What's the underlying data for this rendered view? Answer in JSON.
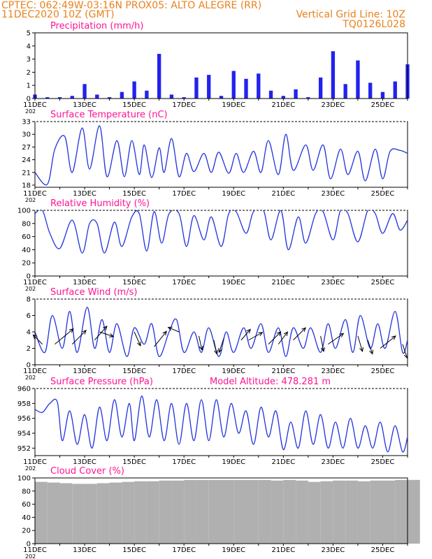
{
  "header": {
    "line1_left": "CPTEC:   062:49W-03:16N   PROX05: ALTO ALEGRE (RR)",
    "line2_left": "11DEC2020 10Z (GMT)",
    "line2_right": "Vertical Grid Line: 10Z",
    "line3_right": "TQ0126L028"
  },
  "x_axis": {
    "labels": [
      "11DEC",
      "13DEC",
      "15DEC",
      "17DEC",
      "19DEC",
      "21DEC",
      "23DEC",
      "25DEC"
    ],
    "year_prefix": "202"
  },
  "colors": {
    "line": "#2233dd",
    "bar": "#2222ee",
    "title": "#ff1493",
    "header": "#e8821e",
    "cloud": "#b0b0b0",
    "arrow": "#000000"
  },
  "chart_data": [
    {
      "type": "bar",
      "title": "Precipitation (mm/h)",
      "ylim": [
        0,
        5
      ],
      "yticks": [
        "0",
        "1",
        "2",
        "3",
        "4",
        "5"
      ],
      "x_days": [
        0,
        0.5,
        1,
        1.5,
        2,
        2.5,
        3,
        3.5,
        4,
        4.5,
        5,
        5.5,
        6,
        6.5,
        7,
        7.5,
        8,
        8.5,
        9,
        9.5,
        10,
        10.5,
        11,
        11.5,
        12,
        12.5,
        13,
        13.5,
        14,
        14.5,
        15
      ],
      "values": [
        0.3,
        0.1,
        0.1,
        0.2,
        1.1,
        0.3,
        0.1,
        0.5,
        1.3,
        0.6,
        3.4,
        0.3,
        0.1,
        1.6,
        1.8,
        0.2,
        2.1,
        1.5,
        1.9,
        0.6,
        0.2,
        0.7,
        0.1,
        1.6,
        3.6,
        1.1,
        2.9,
        1.2,
        0.5,
        1.3,
        2.6
      ]
    },
    {
      "type": "line",
      "title": "Surface Temperature (nC)",
      "ylim": [
        17.5,
        33
      ],
      "yticks": [
        "18",
        "21",
        "24",
        "27",
        "30",
        "33"
      ],
      "x_days": [
        0,
        0.5,
        0.8,
        1.2,
        1.5,
        1.9,
        2.2,
        2.6,
        2.9,
        3.3,
        3.6,
        3.9,
        4.2,
        4.4,
        4.7,
        5.0,
        5.2,
        5.5,
        5.8,
        6.1,
        6.4,
        6.8,
        7.1,
        7.4,
        7.8,
        8.1,
        8.4,
        8.8,
        9.1,
        9.4,
        9.8,
        10.1,
        10.4,
        10.9,
        11.2,
        11.6,
        11.9,
        12.3,
        12.6,
        13.0,
        13.3,
        13.7,
        14.0,
        14.3,
        14.7,
        15.0
      ],
      "values": [
        21,
        18.2,
        26.5,
        29.5,
        21.0,
        31.5,
        21.8,
        32.0,
        20.0,
        28.5,
        20.0,
        28.5,
        20.5,
        27.5,
        19.8,
        26.8,
        21.0,
        29.0,
        20.0,
        25.5,
        21.2,
        25.5,
        21.0,
        25.8,
        20.8,
        25.5,
        21.0,
        26.0,
        21.0,
        28.5,
        20.5,
        30.0,
        21.5,
        27.5,
        21.5,
        27.5,
        19.5,
        26.5,
        20.5,
        26.0,
        19.0,
        26.5,
        19.5,
        26.0,
        26.2,
        25.5
      ]
    },
    {
      "type": "line",
      "title": "Relative Humidity (%)",
      "ylim": [
        0,
        100
      ],
      "yticks": [
        "0",
        "20",
        "40",
        "60",
        "80",
        "100"
      ],
      "x_days": [
        0,
        0.3,
        0.6,
        1.0,
        1.5,
        1.9,
        2.2,
        2.5,
        2.8,
        3.2,
        3.5,
        3.9,
        4.2,
        4.5,
        4.8,
        5.1,
        5.4,
        5.8,
        6.1,
        6.4,
        6.8,
        7.1,
        7.5,
        7.8,
        8.1,
        8.5,
        8.8,
        9.2,
        9.5,
        9.9,
        10.2,
        10.6,
        10.9,
        11.3,
        11.6,
        12.0,
        12.3,
        12.6,
        13.0,
        13.4,
        13.7,
        14.0,
        14.4,
        14.7,
        15.0
      ],
      "values": [
        95,
        100,
        65,
        42,
        85,
        35,
        80,
        80,
        35,
        82,
        45,
        90,
        95,
        38,
        98,
        50,
        95,
        95,
        45,
        92,
        55,
        90,
        45,
        95,
        98,
        65,
        98,
        100,
        55,
        100,
        40,
        90,
        50,
        95,
        98,
        55,
        100,
        95,
        52,
        100,
        95,
        65,
        95,
        70,
        85
      ]
    },
    {
      "type": "line",
      "title": "Surface Wind (m/s)",
      "ylim": [
        0,
        8
      ],
      "yticks": [
        "0",
        "2",
        "4",
        "6",
        "8"
      ],
      "x_days": [
        0,
        0.4,
        0.7,
        1.1,
        1.4,
        1.7,
        2.1,
        2.4,
        2.7,
        3.0,
        3.3,
        3.7,
        4.0,
        4.4,
        4.7,
        5.0,
        5.4,
        5.7,
        6.0,
        6.4,
        6.7,
        7.0,
        7.4,
        7.7,
        8.0,
        8.4,
        8.7,
        9.1,
        9.4,
        9.8,
        10.1,
        10.4,
        10.8,
        11.1,
        11.5,
        11.8,
        12.1,
        12.5,
        12.8,
        13.1,
        13.5,
        13.8,
        14.1,
        14.5,
        14.8,
        15.0
      ],
      "values": [
        4.0,
        1.5,
        6.0,
        2.0,
        6.5,
        1.5,
        7.0,
        2.0,
        5.5,
        1.5,
        5.0,
        1.0,
        4.5,
        2.5,
        5.0,
        1.0,
        4.0,
        5.5,
        1.5,
        4.0,
        1.5,
        4.5,
        1.0,
        4.0,
        1.5,
        4.5,
        2.0,
        5.0,
        1.5,
        4.5,
        1.0,
        4.5,
        2.0,
        4.5,
        1.5,
        5.0,
        2.0,
        5.5,
        1.5,
        6.0,
        2.0,
        5.0,
        2.0,
        6.5,
        1.5,
        3.0
      ],
      "arrows": [
        [
          0.3,
          2.5,
          -0.6,
          0.6
        ],
        [
          0.8,
          2.5,
          1.2,
          1.0
        ],
        [
          1.5,
          2.5,
          0.9,
          0.9
        ],
        [
          2.4,
          3.0,
          0.8,
          0.9
        ],
        [
          2.6,
          4.0,
          0.9,
          -0.3
        ],
        [
          4.0,
          4.0,
          0.4,
          -0.9
        ],
        [
          4.8,
          2.2,
          0.8,
          1.0
        ],
        [
          5.8,
          4.0,
          -0.7,
          0.3
        ],
        [
          6.6,
          3.5,
          0.2,
          -0.9
        ],
        [
          7.2,
          3.0,
          0.2,
          -0.9
        ],
        [
          7.6,
          3.2,
          -0.3,
          -0.9
        ],
        [
          8.3,
          3.0,
          0.6,
          0.7
        ],
        [
          8.6,
          3.0,
          0.9,
          0.5
        ],
        [
          9.4,
          2.5,
          0.8,
          0.8
        ],
        [
          9.8,
          2.5,
          0.6,
          0.8
        ],
        [
          10.4,
          3.0,
          0.8,
          0.8
        ],
        [
          11.5,
          3.5,
          0.2,
          -1.0
        ],
        [
          11.8,
          2.5,
          1.0,
          0.7
        ],
        [
          13.0,
          3.5,
          0.3,
          -1.0
        ],
        [
          13.4,
          3.0,
          0.3,
          -0.9
        ],
        [
          13.9,
          2.0,
          1.0,
          0.8
        ],
        [
          14.8,
          2.5,
          0.3,
          -0.9
        ]
      ]
    },
    {
      "type": "line",
      "title": "Surface Pressure (hPa)",
      "subtitle": "Model Altitude: 478.281  m",
      "ylim": [
        951,
        960
      ],
      "yticks": [
        "952",
        "954",
        "956",
        "958",
        "960"
      ],
      "x_days": [
        0,
        0.3,
        0.6,
        0.9,
        1.1,
        1.4,
        1.7,
        2.0,
        2.3,
        2.6,
        2.9,
        3.2,
        3.5,
        3.8,
        4.0,
        4.3,
        4.6,
        4.9,
        5.2,
        5.5,
        5.8,
        6.1,
        6.4,
        6.7,
        7.0,
        7.3,
        7.6,
        7.9,
        8.2,
        8.5,
        8.8,
        9.1,
        9.4,
        9.7,
        10.0,
        10.3,
        10.6,
        10.9,
        11.2,
        11.5,
        11.8,
        12.1,
        12.4,
        12.7,
        13.0,
        13.3,
        13.6,
        13.9,
        14.2,
        14.5,
        14.8,
        15.0
      ],
      "values": [
        957.2,
        956.8,
        958.0,
        958.2,
        953.0,
        957.0,
        952.5,
        956.5,
        952.0,
        957.5,
        953.0,
        958.5,
        953.5,
        958.0,
        953.0,
        959.0,
        953.5,
        958.5,
        953.0,
        958.0,
        952.5,
        958.0,
        953.0,
        958.5,
        953.0,
        958.5,
        953.5,
        958.0,
        954.0,
        957.0,
        952.5,
        957.5,
        953.5,
        957.0,
        951.8,
        955.5,
        952.0,
        957.0,
        952.5,
        956.5,
        952.0,
        955.5,
        952.0,
        956.0,
        952.0,
        955.0,
        952.0,
        955.5,
        951.5,
        955.0,
        951.5,
        953.5
      ]
    },
    {
      "type": "bar",
      "title": "Cloud Cover (%)",
      "ylim": [
        0,
        100
      ],
      "yticks": [
        "0",
        "20",
        "40",
        "60",
        "80",
        "100"
      ],
      "x_days": [
        0,
        0.5,
        1,
        1.5,
        2,
        2.5,
        3,
        3.5,
        4,
        4.5,
        5,
        5.5,
        6,
        6.5,
        7,
        7.5,
        8,
        8.5,
        9,
        9.5,
        10,
        10.5,
        11,
        11.5,
        12,
        12.5,
        13,
        13.5,
        14,
        14.5,
        15
      ],
      "values": [
        94,
        93,
        92,
        91,
        91,
        92,
        93,
        94,
        95,
        95,
        96,
        96,
        97,
        97,
        97,
        97,
        97,
        97,
        97,
        96,
        97,
        96,
        94,
        95,
        96,
        96,
        95,
        96,
        96,
        97,
        97
      ]
    }
  ]
}
